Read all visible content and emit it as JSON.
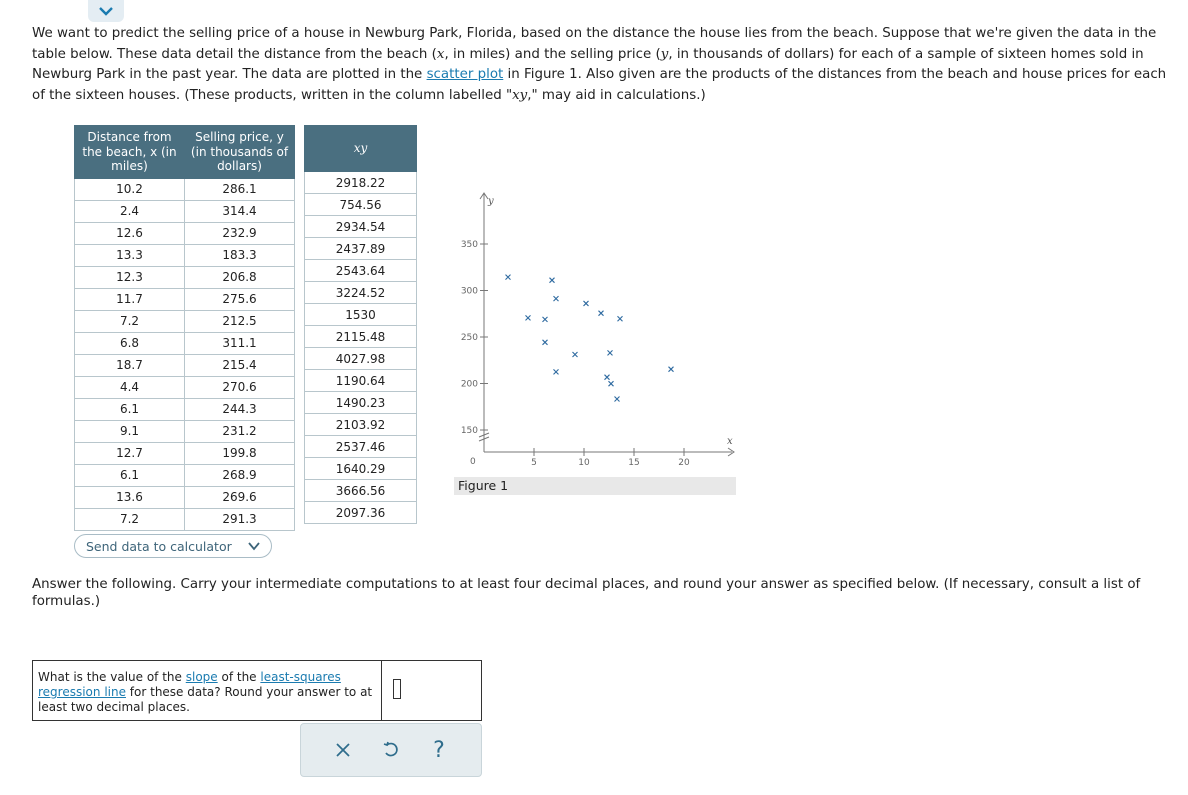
{
  "intro": {
    "p1": "We want to predict the selling price of a house in Newburg Park, Florida, based on the distance the house lies from the beach. Suppose that we're given the data in the table below. These data detail the distance from the beach (",
    "x_var": "x",
    "p2": ", in miles) and the selling price (",
    "y_var": "y",
    "p3": ", in thousands of dollars) for each of a sample of sixteen homes sold in Newburg Park in the past year. The data are plotted in the ",
    "scatter_link": "scatter plot",
    "p4": " in Figure 1. Also given are the products of the distances from the beach and house prices for each of the sixteen houses. (These products, written in the column labelled \"",
    "xy_var": "xy",
    "p5": ",\" may aid in calculations.)"
  },
  "table": {
    "headers": [
      "Distance from the beach, x (in miles)",
      "Selling price, y (in thousands of dollars)",
      "xy"
    ],
    "rows": [
      [
        "10.2",
        "286.1",
        "2918.22"
      ],
      [
        "2.4",
        "314.4",
        "754.56"
      ],
      [
        "12.6",
        "232.9",
        "2934.54"
      ],
      [
        "13.3",
        "183.3",
        "2437.89"
      ],
      [
        "12.3",
        "206.8",
        "2543.64"
      ],
      [
        "11.7",
        "275.6",
        "3224.52"
      ],
      [
        "7.2",
        "212.5",
        "1530"
      ],
      [
        "6.8",
        "311.1",
        "2115.48"
      ],
      [
        "18.7",
        "215.4",
        "4027.98"
      ],
      [
        "4.4",
        "270.6",
        "1190.64"
      ],
      [
        "6.1",
        "244.3",
        "1490.23"
      ],
      [
        "9.1",
        "231.2",
        "2103.92"
      ],
      [
        "12.7",
        "199.8",
        "2537.46"
      ],
      [
        "6.1",
        "268.9",
        "1640.29"
      ],
      [
        "13.6",
        "269.6",
        "3666.56"
      ],
      [
        "7.2",
        "291.3",
        "2097.36"
      ]
    ]
  },
  "send_button": "Send data to calculator",
  "figure": {
    "caption": "Figure 1"
  },
  "chart_data": {
    "type": "scatter",
    "title": "",
    "xlabel": "x",
    "ylabel": "y",
    "xlim": [
      0,
      25
    ],
    "ylim": [
      130,
      370
    ],
    "xticks": [
      5,
      10,
      15,
      20
    ],
    "yticks": [
      150,
      200,
      250,
      300,
      350
    ],
    "origin_label": "0",
    "axis_break": true,
    "marker": "x",
    "marker_color": "#2e6aa0",
    "x": [
      10.2,
      2.4,
      12.6,
      13.3,
      12.3,
      11.7,
      7.2,
      6.8,
      18.7,
      4.4,
      6.1,
      9.1,
      12.7,
      6.1,
      13.6,
      7.2
    ],
    "y": [
      286.1,
      314.4,
      232.9,
      183.3,
      206.8,
      275.6,
      212.5,
      311.1,
      215.4,
      270.6,
      244.3,
      231.2,
      199.8,
      268.9,
      269.6,
      291.3
    ]
  },
  "answer_prompt": {
    "text": "Answer the following. Carry your intermediate computations to at least four decimal places, and round your answer as specified below. (If necessary, consult a ",
    "link": "list of formulas",
    "end": ".)"
  },
  "question": {
    "t1": "What is the value of the ",
    "slope_link": "slope",
    "t2": " of the ",
    "lsq_link": "least-squares regression line",
    "t3": " for these data? Round your answer to at least two decimal places."
  },
  "answer_value": "",
  "colors": {
    "header_bg": "#4a6f80",
    "link": "#1a7bb0",
    "accent": "#2f6d8c"
  },
  "icons": [
    "chevron-down-icon",
    "close-icon",
    "undo-icon",
    "help-icon"
  ]
}
